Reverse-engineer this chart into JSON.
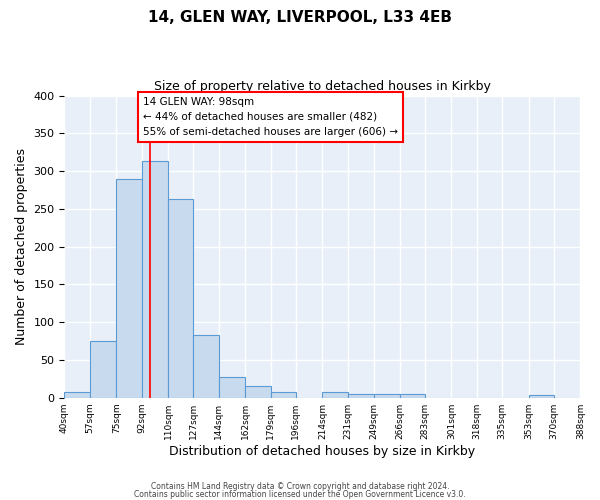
{
  "title1": "14, GLEN WAY, LIVERPOOL, L33 4EB",
  "title2": "Size of property relative to detached houses in Kirkby",
  "xlabel": "Distribution of detached houses by size in Kirkby",
  "ylabel": "Number of detached properties",
  "bin_edges": [
    40,
    57,
    75,
    92,
    110,
    127,
    144,
    162,
    179,
    196,
    214,
    231,
    249,
    266,
    283,
    301,
    318,
    335,
    353,
    370,
    388
  ],
  "bar_heights": [
    8,
    75,
    290,
    313,
    263,
    83,
    28,
    15,
    8,
    0,
    8,
    5,
    5,
    5,
    0,
    0,
    0,
    0,
    3,
    0
  ],
  "bar_color": "#c8daee",
  "bar_edge_color": "#5b9bd5",
  "bg_color": "#e8eff8",
  "grid_color": "#ffffff",
  "red_line_x": 98,
  "ylim": [
    0,
    400
  ],
  "yticks": [
    0,
    50,
    100,
    150,
    200,
    250,
    300,
    350,
    400
  ],
  "annotation_line1": "14 GLEN WAY: 98sqm",
  "annotation_line2": "← 44% of detached houses are smaller (482)",
  "annotation_line3": "55% of semi-detached houses are larger (606) →",
  "footer1": "Contains HM Land Registry data © Crown copyright and database right 2024.",
  "footer2": "Contains public sector information licensed under the Open Government Licence v3.0."
}
